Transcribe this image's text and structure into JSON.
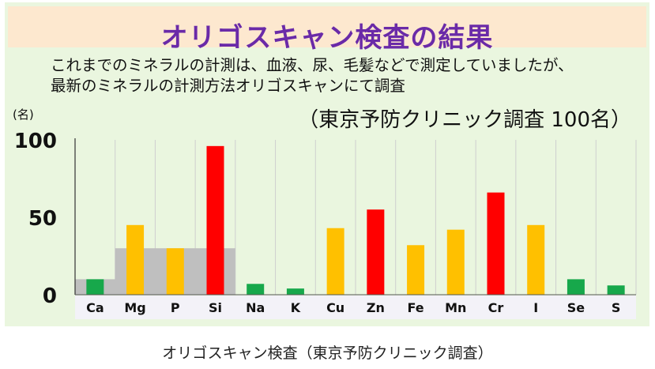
{
  "title": "オリゴスキャン検査の結果",
  "description": {
    "line1": "これまでのミネラルの計測は、血液、尿、毛髪などで測定していましたが、",
    "line2": "最新のミネラルの計測方法オリゴスキャンにて調査"
  },
  "survey_note": "（東京予防クリニック調査 100名）",
  "caption": "オリゴスキャン検査（東京予防クリニック調査）",
  "colors": {
    "green": "#17a84b",
    "orange": "#ffc000",
    "red": "#ff0000",
    "gray": "#bfbfbf",
    "title": "#6a2aa8"
  },
  "chart_data": {
    "type": "bar",
    "ylabel": "(名)",
    "ylim": [
      0,
      100
    ],
    "yticks": [
      0,
      50,
      100
    ],
    "grid": "vertical",
    "categories": [
      "Ca",
      "Mg",
      "P",
      "Si",
      "Na",
      "K",
      "Cu",
      "Zn",
      "Fe",
      "Mn",
      "Cr",
      "I",
      "Se",
      "S"
    ],
    "series": [
      {
        "values": [
          10,
          45,
          30,
          96,
          7,
          4,
          43,
          55,
          32,
          42,
          66,
          45,
          10,
          6
        ],
        "colors": [
          "green",
          "orange",
          "orange",
          "red",
          "green",
          "green",
          "orange",
          "red",
          "orange",
          "orange",
          "red",
          "orange",
          "green",
          "green"
        ]
      }
    ],
    "background_bands": [
      {
        "from": "Ca",
        "to": "Mg",
        "value": 10
      },
      {
        "from": "Mg",
        "to": "Si",
        "value": 30
      }
    ]
  }
}
